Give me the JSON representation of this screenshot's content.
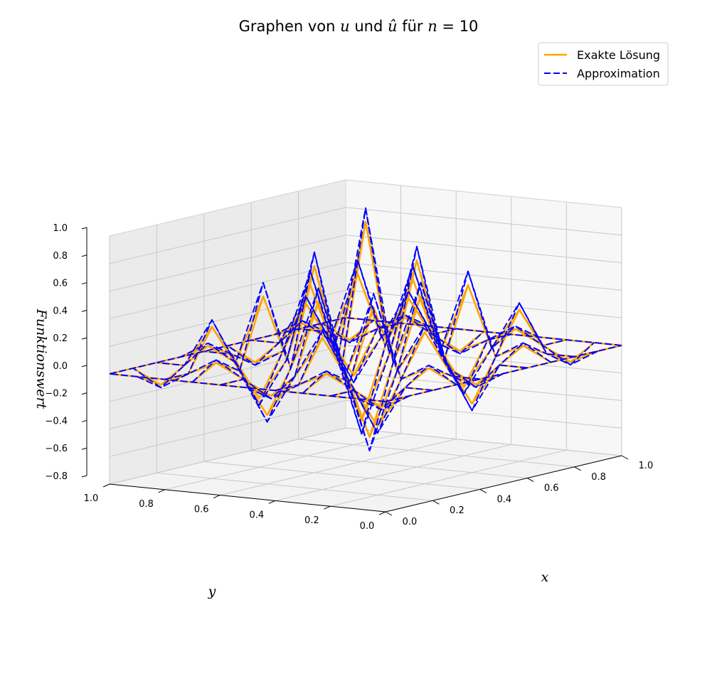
{
  "title": "Graphen von u und û für n = 10",
  "chart_data": {
    "type": "surface-wireframe-3d",
    "title": "Graphen von u und û für n = 10",
    "xlabel": "x",
    "ylabel": "y",
    "zlabel": "Funktionswert",
    "xlim": [
      0,
      1
    ],
    "ylim": [
      0,
      1
    ],
    "zlim": [
      -0.8,
      1.0
    ],
    "x_ticks": [
      "0.0",
      "0.2",
      "0.4",
      "0.6",
      "0.8",
      "1.0"
    ],
    "y_ticks": [
      "0.0",
      "0.2",
      "0.4",
      "0.6",
      "0.8",
      "1.0"
    ],
    "z_ticks": [
      "−0.8",
      "−0.6",
      "−0.4",
      "−0.2",
      "0.0",
      "0.2",
      "0.4",
      "0.6",
      "0.8",
      "1.0"
    ],
    "grid": true,
    "legend_position": "top-right",
    "grid_x": [
      0,
      0.1,
      0.2,
      0.3,
      0.4,
      0.5,
      0.6,
      0.7,
      0.8,
      0.9,
      1.0
    ],
    "grid_y": [
      0,
      0.1,
      0.2,
      0.3,
      0.4,
      0.5,
      0.6,
      0.7,
      0.8,
      0.9,
      1.0
    ],
    "series": [
      {
        "name": "Exakte Lösung",
        "color": "#FFA500",
        "style": "solid",
        "z": [
          [
            0,
            0,
            0,
            0,
            0,
            0,
            0,
            0,
            0,
            0,
            0
          ],
          [
            0,
            -0.1,
            0,
            0.1,
            0,
            -0.1,
            0,
            0.1,
            0,
            -0.1,
            0
          ],
          [
            0,
            0,
            -0.3,
            0,
            0.3,
            0,
            -0.3,
            0,
            0.3,
            0,
            0
          ],
          [
            0,
            0.1,
            0,
            0.5,
            0,
            0.5,
            0,
            0.5,
            0,
            0.1,
            0
          ],
          [
            0,
            0,
            0.3,
            0,
            -0.5,
            0,
            0.7,
            0,
            -0.3,
            0,
            0
          ],
          [
            0,
            -0.1,
            0,
            0.5,
            0,
            1.0,
            0,
            0.5,
            0,
            -0.1,
            0
          ],
          [
            0,
            0,
            -0.3,
            0,
            0.7,
            0,
            -0.5,
            0,
            0.3,
            0,
            0
          ],
          [
            0,
            0.1,
            0,
            0.5,
            0,
            0.5,
            0,
            0.5,
            0,
            0.1,
            0
          ],
          [
            0,
            0,
            0.3,
            0,
            -0.3,
            0,
            0.3,
            0,
            -0.3,
            0,
            0
          ],
          [
            0,
            -0.1,
            0,
            0.1,
            0,
            -0.1,
            0,
            0.1,
            0,
            -0.1,
            0
          ],
          [
            0,
            0,
            0,
            0,
            0,
            0,
            0,
            0,
            0,
            0,
            0
          ]
        ]
      },
      {
        "name": "Approximation",
        "color": "#0000FF",
        "style": "dashed",
        "z": [
          [
            0,
            0,
            0,
            0,
            0,
            0,
            0,
            0,
            0,
            0,
            0
          ],
          [
            0,
            -0.12,
            0,
            0.12,
            0,
            -0.12,
            0,
            0.12,
            0,
            -0.12,
            0
          ],
          [
            0,
            0,
            -0.35,
            0,
            0.35,
            0,
            -0.35,
            0,
            0.35,
            0,
            0
          ],
          [
            0,
            0.12,
            0,
            0.6,
            0,
            0.6,
            0,
            0.6,
            0,
            0.12,
            0
          ],
          [
            0,
            0,
            0.35,
            0,
            -0.6,
            0,
            0.8,
            0,
            -0.35,
            0,
            0
          ],
          [
            0,
            -0.12,
            0,
            0.6,
            0,
            1.1,
            0,
            0.6,
            0,
            -0.12,
            0
          ],
          [
            0,
            0,
            -0.35,
            0,
            0.8,
            0,
            -0.6,
            0,
            0.35,
            0,
            0
          ],
          [
            0,
            0.12,
            0,
            0.6,
            0,
            0.6,
            0,
            0.6,
            0,
            0.12,
            0
          ],
          [
            0,
            0,
            0.35,
            0,
            -0.35,
            0,
            0.35,
            0,
            -0.35,
            0,
            0
          ],
          [
            0,
            -0.12,
            0,
            0.12,
            0,
            -0.12,
            0,
            0.12,
            0,
            -0.12,
            0
          ],
          [
            0,
            0,
            0,
            0,
            0,
            0,
            0,
            0,
            0,
            0,
            0
          ]
        ]
      }
    ]
  }
}
